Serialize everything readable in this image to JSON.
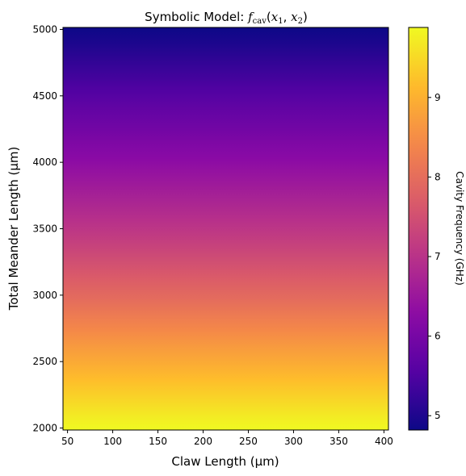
{
  "chart_data": {
    "type": "heatmap",
    "title": {
      "prefix": "Symbolic Model: ",
      "func": "f",
      "func_sub": "cav",
      "args_open": "(",
      "arg1": "x",
      "arg1_sub": "1",
      "sep": ", ",
      "arg2": "x",
      "arg2_sub": "2",
      "args_close": ")"
    },
    "xlabel": "Claw Length (µm)",
    "ylabel": "Total Meander Length (µm)",
    "colorbar_label": "Cavity Frequency (GHz)",
    "colormap": "plasma",
    "xlim": [
      45,
      405
    ],
    "ylim": [
      1985,
      5015
    ],
    "xticks": [
      50,
      100,
      150,
      200,
      250,
      300,
      350,
      400
    ],
    "yticks": [
      2000,
      2500,
      3000,
      3500,
      4000,
      4500,
      5000
    ],
    "clim": [
      4.82,
      9.88
    ],
    "colorbar_ticks": [
      5,
      6,
      7,
      8,
      9
    ],
    "gradient_direction": "frequency decreases with total meander length; nearly independent of claw length",
    "frequency_profile": [
      {
        "meander_length": 2000,
        "frequency": 9.88
      },
      {
        "meander_length": 2500,
        "frequency": 8.9
      },
      {
        "meander_length": 3000,
        "frequency": 7.92
      },
      {
        "meander_length": 3500,
        "frequency": 7.05
      },
      {
        "meander_length": 4000,
        "frequency": 6.3
      },
      {
        "meander_length": 4500,
        "frequency": 5.58
      },
      {
        "meander_length": 5000,
        "frequency": 4.82
      }
    ]
  }
}
